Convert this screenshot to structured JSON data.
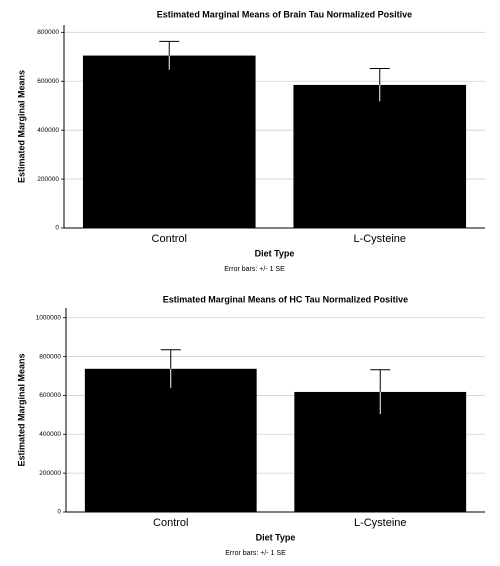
{
  "chart_data": [
    {
      "type": "bar",
      "title": "Estimated Marginal Means of Brain Tau Normalized Positive",
      "ylabel": "Estimated Marginal Means",
      "xlabel": "Diet Type",
      "note": "Error bars: +/- 1 SE",
      "categories": [
        "Control",
        "L-Cysteine"
      ],
      "values": [
        705000,
        585000
      ],
      "errors": [
        58000,
        67000
      ],
      "color": "#000000",
      "ylim": [
        0,
        830000
      ],
      "yticks": [
        0,
        200000,
        400000,
        600000,
        800000
      ],
      "grid": true
    },
    {
      "type": "bar",
      "title": "Estimated Marginal Means of HC Tau Normalized Positive",
      "ylabel": "Estimated Marginal Means",
      "xlabel": "Diet Type",
      "note": "Error bars: +/- 1 SE",
      "categories": [
        "Control",
        "L-Cysteine"
      ],
      "values": [
        737000,
        618000
      ],
      "errors": [
        98000,
        114000
      ],
      "color": "#000000",
      "ylim": [
        0,
        1050000
      ],
      "yticks": [
        0,
        200000,
        400000,
        600000,
        800000,
        1000000
      ],
      "grid": true
    }
  ]
}
